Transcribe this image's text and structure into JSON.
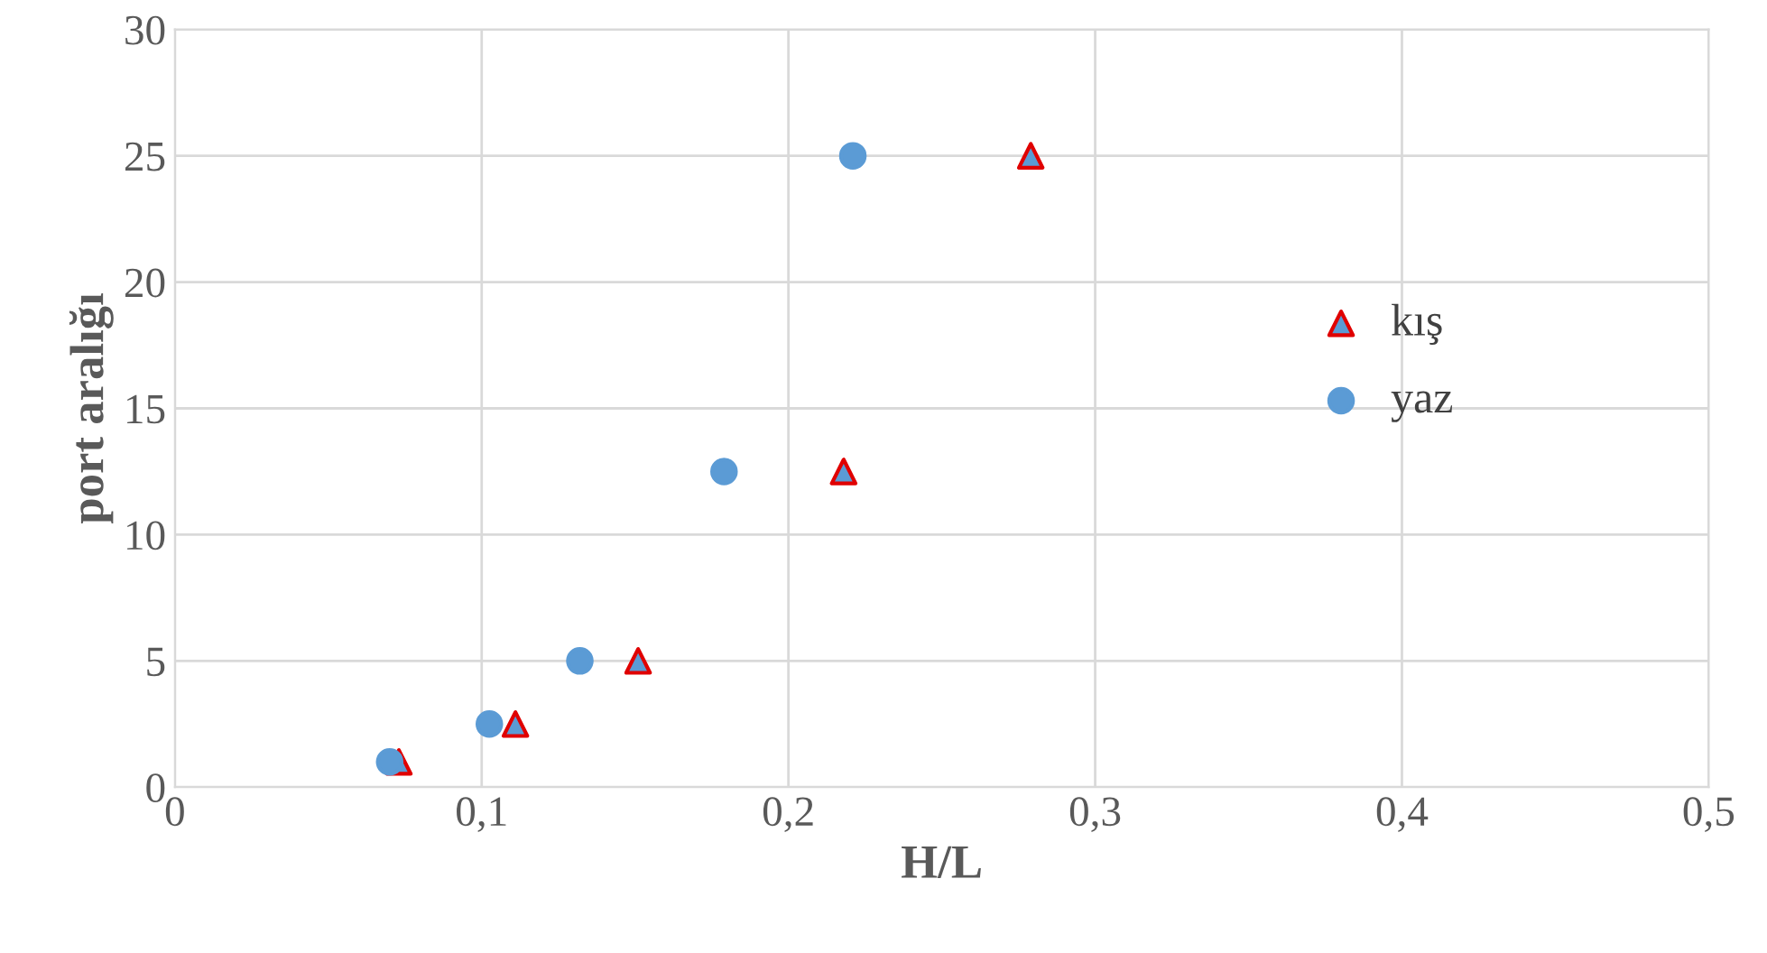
{
  "chart_data": {
    "type": "scatter",
    "xlabel": "H/L",
    "ylabel": "port aralığı",
    "series": [
      {
        "name": "kış",
        "color": "#e00000",
        "marker": "triangle",
        "x": [
          0.073,
          0.111,
          0.151,
          0.218,
          0.279
        ],
        "values": [
          1,
          2.5,
          5,
          12.5,
          25
        ]
      },
      {
        "name": "yaz",
        "color": "#5b9bd5",
        "marker": "circle",
        "x": [
          0.07,
          0.1025,
          0.132,
          0.179,
          0.221
        ],
        "values": [
          1,
          2.5,
          5,
          12.5,
          25
        ]
      }
    ],
    "xlim": [
      0,
      0.5
    ],
    "xticks": [
      {
        "value": 0,
        "label": "0"
      },
      {
        "value": 0.1,
        "label": "0,1"
      },
      {
        "value": 0.2,
        "label": "0,2"
      },
      {
        "value": 0.3,
        "label": "0,3"
      },
      {
        "value": 0.4,
        "label": "0,4"
      },
      {
        "value": 0.5,
        "label": "0,5"
      }
    ],
    "ylim": [
      0,
      30
    ],
    "yticks": [
      0,
      5,
      10,
      15,
      20,
      25,
      30
    ],
    "grid": true,
    "legend": "right"
  }
}
